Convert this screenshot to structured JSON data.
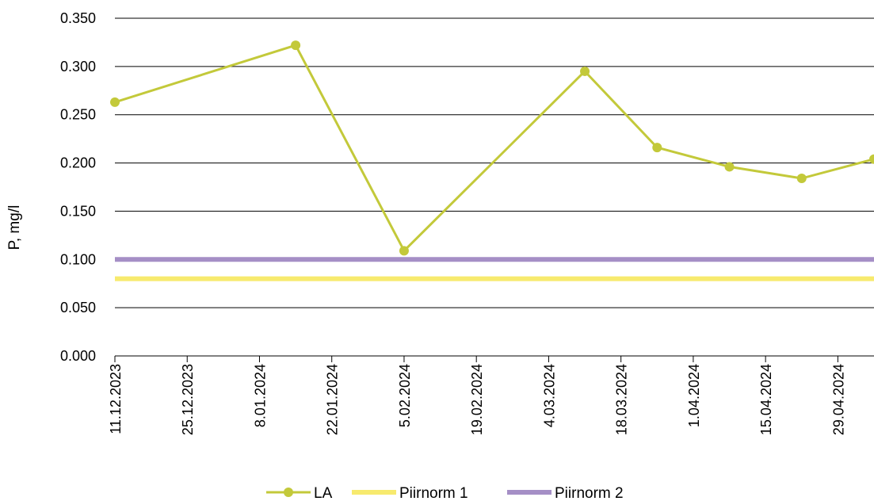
{
  "chart_data": {
    "type": "line",
    "title": "",
    "xlabel": "",
    "ylabel": "P, mg/l",
    "ylim": [
      0,
      0.35
    ],
    "yticks": [
      "0.000",
      "0.050",
      "0.100",
      "0.150",
      "0.200",
      "0.250",
      "0.300",
      "0.350"
    ],
    "xlim": [
      "2023-12-11",
      "2024-05-06"
    ],
    "xticks": [
      "11.12.2023",
      "25.12.2023",
      "8.01.2024",
      "22.01.2024",
      "5.02.2024",
      "19.02.2024",
      "4.03.2024",
      "18.03.2024",
      "1.04.2024",
      "15.04.2024",
      "29.04.2024"
    ],
    "grid": "horizontal",
    "legend_position": "bottom",
    "series": [
      {
        "name": "LA",
        "style": "line-marker",
        "color": "#c3c93a",
        "points": [
          {
            "x": "2023-12-11",
            "y": 0.263
          },
          {
            "x": "2024-01-15",
            "y": 0.322
          },
          {
            "x": "2024-02-05",
            "y": 0.109
          },
          {
            "x": "2024-03-11",
            "y": 0.295
          },
          {
            "x": "2024-03-25",
            "y": 0.216
          },
          {
            "x": "2024-04-08",
            "y": 0.196
          },
          {
            "x": "2024-04-22",
            "y": 0.184
          },
          {
            "x": "2024-05-06",
            "y": 0.204
          }
        ]
      },
      {
        "name": "Piirnorm 1",
        "style": "line",
        "color": "#f7ea6e",
        "points": [
          {
            "x": "2023-12-11",
            "y": 0.08
          },
          {
            "x": "2024-05-06",
            "y": 0.08
          }
        ]
      },
      {
        "name": "Piirnorm 2",
        "style": "line",
        "color": "#a58fc6",
        "points": [
          {
            "x": "2023-12-11",
            "y": 0.1
          },
          {
            "x": "2024-05-06",
            "y": 0.1
          }
        ]
      }
    ]
  }
}
